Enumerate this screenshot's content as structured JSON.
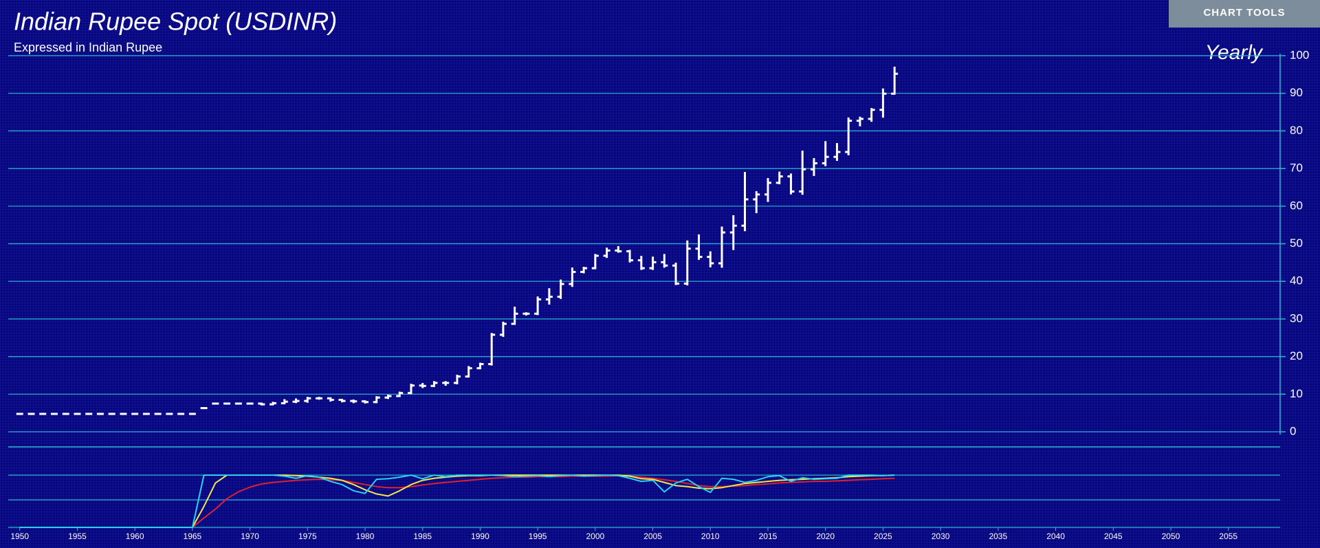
{
  "ui": {
    "button": "CHART TOOLS"
  },
  "chart_data": {
    "type": "ohlc",
    "title": "Indian Rupee Spot (USDINR)",
    "subtitle": "Expressed in Indian Rupee",
    "period": "Yearly",
    "color": "#ffffff",
    "grid": true,
    "x": [
      1950,
      1951,
      1952,
      1953,
      1954,
      1955,
      1956,
      1957,
      1958,
      1959,
      1960,
      1961,
      1962,
      1963,
      1964,
      1965,
      1966,
      1967,
      1968,
      1969,
      1970,
      1971,
      1972,
      1973,
      1974,
      1975,
      1976,
      1977,
      1978,
      1979,
      1980,
      1981,
      1982,
      1983,
      1984,
      1985,
      1986,
      1987,
      1988,
      1989,
      1990,
      1991,
      1992,
      1993,
      1994,
      1995,
      1996,
      1997,
      1998,
      1999,
      2000,
      2001,
      2002,
      2003,
      2004,
      2005,
      2006,
      2007,
      2008,
      2009,
      2010,
      2011,
      2012,
      2013,
      2014,
      2015,
      2016,
      2017,
      2018,
      2019,
      2020,
      2021,
      2022,
      2023,
      2024,
      2025,
      2026
    ],
    "open": [
      4.76,
      4.76,
      4.76,
      4.76,
      4.76,
      4.76,
      4.76,
      4.76,
      4.76,
      4.76,
      4.76,
      4.76,
      4.76,
      4.76,
      4.76,
      4.76,
      6.3,
      7.5,
      7.5,
      7.5,
      7.5,
      7.5,
      7.3,
      7.6,
      8.0,
      8.2,
      8.9,
      8.9,
      8.5,
      8.2,
      8.1,
      7.9,
      9.1,
      9.5,
      10.3,
      12.3,
      12.2,
      13.0,
      13.0,
      14.7,
      16.9,
      18.0,
      25.8,
      28.7,
      31.4,
      31.4,
      35.2,
      35.9,
      39.3,
      42.5,
      43.5,
      46.8,
      48.2,
      48.0,
      45.6,
      43.5,
      45.1,
      44.2,
      39.4,
      48.7,
      46.5,
      44.8,
      53.0,
      54.8,
      61.8,
      63.1,
      66.2,
      67.9,
      63.9,
      69.8,
      71.4,
      73.1,
      74.4,
      82.7,
      83.2,
      85.6,
      89.9
    ],
    "high": [
      4.76,
      4.76,
      4.76,
      4.76,
      4.76,
      4.76,
      4.76,
      4.76,
      4.76,
      4.76,
      4.76,
      4.76,
      4.76,
      4.76,
      4.76,
      4.76,
      6.3,
      7.5,
      7.5,
      7.5,
      7.5,
      7.5,
      7.7,
      8.4,
      8.6,
      9.0,
      9.0,
      8.9,
      8.5,
      8.3,
      8.1,
      9.2,
      9.6,
      10.4,
      12.5,
      12.7,
      13.2,
      13.2,
      14.9,
      17.2,
      18.1,
      26.0,
      29.0,
      33.0,
      31.5,
      35.7,
      37.9,
      40.2,
      43.4,
      43.6,
      47.0,
      48.7,
      49.1,
      48.1,
      46.5,
      46.3,
      47.0,
      44.7,
      50.6,
      52.2,
      47.7,
      54.3,
      57.3,
      68.8,
      63.7,
      67.2,
      68.9,
      68.4,
      74.5,
      72.5,
      77.0,
      76.5,
      83.3,
      83.5,
      85.8,
      91.0,
      96.8
    ],
    "low": [
      4.76,
      4.76,
      4.76,
      4.76,
      4.76,
      4.76,
      4.76,
      4.76,
      4.76,
      4.76,
      4.76,
      4.76,
      4.76,
      4.76,
      4.76,
      4.76,
      6.3,
      7.5,
      7.5,
      7.5,
      7.5,
      7.3,
      7.3,
      7.6,
      7.9,
      8.0,
      8.8,
      8.3,
      8.1,
      7.9,
      7.8,
      7.9,
      9.0,
      9.5,
      10.3,
      11.9,
      12.2,
      12.5,
      12.9,
      14.7,
      16.9,
      17.9,
      25.5,
      28.7,
      31.2,
      31.3,
      34.1,
      35.6,
      38.8,
      42.4,
      43.5,
      46.5,
      47.9,
      45.3,
      43.3,
      43.3,
      43.9,
      39.3,
      39.2,
      46.0,
      44.0,
      43.9,
      48.6,
      53.6,
      58.4,
      61.4,
      66.1,
      63.4,
      63.3,
      68.3,
      70.9,
      72.3,
      73.8,
      81.5,
      82.7,
      83.8,
      89.9
    ],
    "close": [
      4.76,
      4.76,
      4.76,
      4.76,
      4.76,
      4.76,
      4.76,
      4.76,
      4.76,
      4.76,
      4.76,
      4.76,
      4.76,
      4.76,
      4.76,
      4.76,
      6.3,
      7.5,
      7.5,
      7.5,
      7.5,
      7.3,
      7.6,
      8.0,
      8.2,
      8.9,
      8.9,
      8.5,
      8.2,
      8.1,
      7.9,
      9.1,
      9.5,
      10.3,
      12.3,
      12.2,
      13.0,
      13.0,
      14.7,
      16.9,
      18.0,
      25.8,
      28.7,
      31.4,
      31.4,
      35.2,
      35.9,
      39.3,
      42.5,
      43.5,
      46.8,
      48.2,
      48.0,
      45.6,
      43.5,
      45.1,
      44.2,
      39.4,
      48.7,
      46.5,
      44.8,
      53.0,
      54.8,
      61.8,
      63.1,
      66.2,
      67.9,
      63.9,
      69.8,
      71.4,
      73.1,
      74.4,
      82.7,
      83.2,
      85.6,
      89.9,
      95.2
    ],
    "xlim": [
      1949,
      2059.5
    ],
    "xticks": [
      1950,
      1955,
      1960,
      1965,
      1970,
      1975,
      1980,
      1985,
      1990,
      1995,
      2000,
      2005,
      2010,
      2015,
      2020,
      2025,
      2030,
      2035,
      2040,
      2045,
      2050,
      2055
    ],
    "ylim": [
      0,
      100
    ],
    "yticks": [
      0,
      10,
      20,
      30,
      40,
      50,
      60,
      70,
      80,
      90,
      100
    ],
    "indicator": {
      "ylim": [
        0,
        100
      ],
      "series": [
        {
          "color": "#29d3f0",
          "values": [
            0,
            0,
            0,
            0,
            0,
            0,
            0,
            0,
            0,
            0,
            0,
            0,
            0,
            0,
            0,
            0,
            100,
            100,
            100,
            100,
            100,
            100,
            100,
            98,
            94,
            99,
            96,
            88,
            82,
            70,
            65,
            92,
            93,
            96,
            100,
            93,
            100,
            97,
            100,
            100,
            100,
            100,
            99,
            97,
            98,
            99,
            97,
            99,
            100,
            98,
            99,
            100,
            99,
            94,
            88,
            90,
            68,
            85,
            92,
            78,
            67,
            94,
            92,
            86,
            90,
            97,
            99,
            88,
            95,
            92,
            93,
            94,
            100,
            100,
            100,
            99,
            100
          ]
        },
        {
          "color": "#f5e84a",
          "values": [
            0,
            0,
            0,
            0,
            0,
            0,
            0,
            0,
            0,
            0,
            0,
            0,
            0,
            0,
            0,
            0,
            40,
            85,
            100,
            100,
            100,
            100,
            100,
            100,
            99,
            98,
            96,
            94,
            90,
            82,
            72,
            64,
            60,
            70,
            82,
            90,
            94,
            96,
            98,
            99,
            99,
            100,
            100,
            100,
            100,
            100,
            100,
            100,
            100,
            100,
            100,
            100,
            100,
            98,
            93,
            92,
            86,
            80,
            78,
            75,
            74,
            76,
            80,
            84,
            86,
            88,
            90,
            91,
            92,
            93,
            94,
            95,
            97,
            98,
            99,
            99,
            100
          ]
        },
        {
          "color": "#e0202a",
          "values": [
            0,
            0,
            0,
            0,
            0,
            0,
            0,
            0,
            0,
            0,
            0,
            0,
            0,
            0,
            0,
            0,
            18,
            35,
            55,
            68,
            77,
            83,
            86,
            88,
            90,
            91,
            92,
            91,
            90,
            86,
            82,
            78,
            76,
            76,
            78,
            81,
            84,
            86,
            88,
            90,
            92,
            94,
            95,
            96,
            96,
            97,
            97,
            97,
            98,
            98,
            98,
            98,
            99,
            98,
            96,
            94,
            91,
            88,
            84,
            80,
            78,
            78,
            79,
            80,
            82,
            83,
            85,
            86,
            87,
            88,
            88,
            89,
            90,
            91,
            92,
            93,
            94
          ]
        }
      ]
    }
  }
}
